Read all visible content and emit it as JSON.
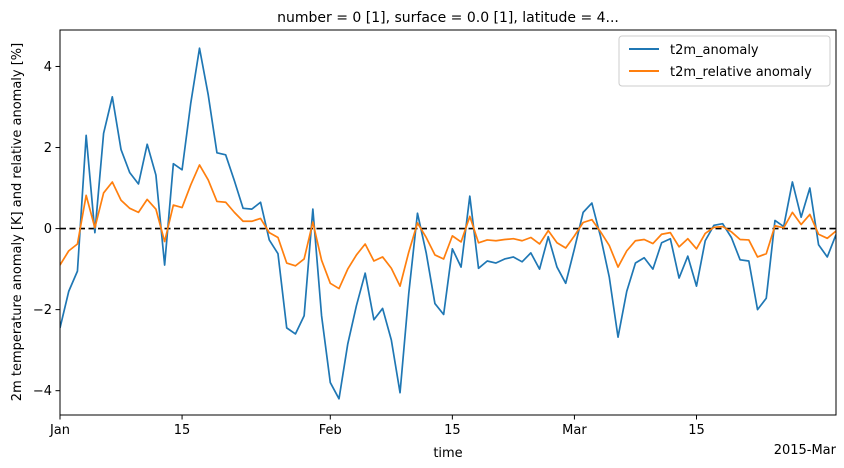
{
  "chart_data": {
    "type": "line",
    "title": "number = 0 [1], surface = 0.0 [1], latitude = 4...",
    "xlabel": "time",
    "ylabel": "2m temperature anomaly [K] and relative anomaly [%]",
    "x_start": "2015-01-01",
    "x_end": "2015-03-31",
    "ylim": [
      -4.6,
      4.9
    ],
    "xticks": [
      {
        "date": "2015-01-01",
        "label": "Jan"
      },
      {
        "date": "2015-01-15",
        "label": "15"
      },
      {
        "date": "2015-02-01",
        "label": "Feb"
      },
      {
        "date": "2015-02-15",
        "label": "15"
      },
      {
        "date": "2015-03-01",
        "label": "Mar"
      },
      {
        "date": "2015-03-15",
        "label": "15"
      }
    ],
    "x_offset_label": "2015-Mar",
    "yticks": [
      -4,
      -2,
      0,
      2,
      4
    ],
    "zero_line": {
      "value": 0,
      "style": "dashed",
      "color": "#000000"
    },
    "legend_position": "upper right",
    "series": [
      {
        "name": "t2m_anomaly",
        "color": "#1f77b4",
        "values": [
          -2.45,
          -1.55,
          -1.05,
          2.3,
          -0.1,
          2.35,
          3.25,
          1.95,
          1.38,
          1.1,
          2.08,
          1.32,
          -0.9,
          1.6,
          1.45,
          3.1,
          4.45,
          3.3,
          1.87,
          1.82,
          1.18,
          0.5,
          0.48,
          0.65,
          -0.28,
          -0.62,
          -2.45,
          -2.6,
          -2.15,
          0.48,
          -2.15,
          -3.8,
          -4.2,
          -2.85,
          -1.9,
          -1.1,
          -2.25,
          -1.97,
          -2.75,
          -4.05,
          -1.6,
          0.38,
          -0.6,
          -1.85,
          -2.12,
          -0.5,
          -0.95,
          0.8,
          -0.98,
          -0.8,
          -0.85,
          -0.75,
          -0.7,
          -0.82,
          -0.6,
          -1.0,
          -0.2,
          -0.95,
          -1.35,
          -0.5,
          0.4,
          0.63,
          -0.2,
          -1.2,
          -2.68,
          -1.55,
          -0.85,
          -0.72,
          -1.0,
          -0.35,
          -0.25,
          -1.22,
          -0.68,
          -1.42,
          -0.3,
          0.08,
          0.12,
          -0.22,
          -0.77,
          -0.8,
          -2.0,
          -1.72,
          0.2,
          0.05,
          1.15,
          0.28,
          1.0,
          -0.4,
          -0.7,
          -0.15
        ]
      },
      {
        "name": "t2m_relative anomaly",
        "color": "#ff7f0e",
        "values": [
          -0.9,
          -0.55,
          -0.38,
          0.82,
          0.02,
          0.88,
          1.15,
          0.7,
          0.5,
          0.4,
          0.72,
          0.48,
          -0.32,
          0.58,
          0.52,
          1.08,
          1.57,
          1.2,
          0.67,
          0.65,
          0.4,
          0.18,
          0.18,
          0.25,
          -0.1,
          -0.22,
          -0.85,
          -0.92,
          -0.75,
          0.16,
          -0.78,
          -1.35,
          -1.48,
          -1.0,
          -0.65,
          -0.38,
          -0.8,
          -0.7,
          -0.98,
          -1.42,
          -0.58,
          0.14,
          -0.22,
          -0.65,
          -0.75,
          -0.18,
          -0.33,
          0.3,
          -0.35,
          -0.28,
          -0.3,
          -0.27,
          -0.25,
          -0.3,
          -0.22,
          -0.38,
          -0.05,
          -0.35,
          -0.48,
          -0.18,
          0.15,
          0.22,
          -0.08,
          -0.42,
          -0.95,
          -0.55,
          -0.3,
          -0.27,
          -0.37,
          -0.14,
          -0.1,
          -0.45,
          -0.25,
          -0.5,
          -0.12,
          0.03,
          0.05,
          -0.08,
          -0.27,
          -0.28,
          -0.7,
          -0.62,
          0.07,
          0.02,
          0.4,
          0.1,
          0.35,
          -0.14,
          -0.24,
          -0.06
        ]
      }
    ]
  }
}
